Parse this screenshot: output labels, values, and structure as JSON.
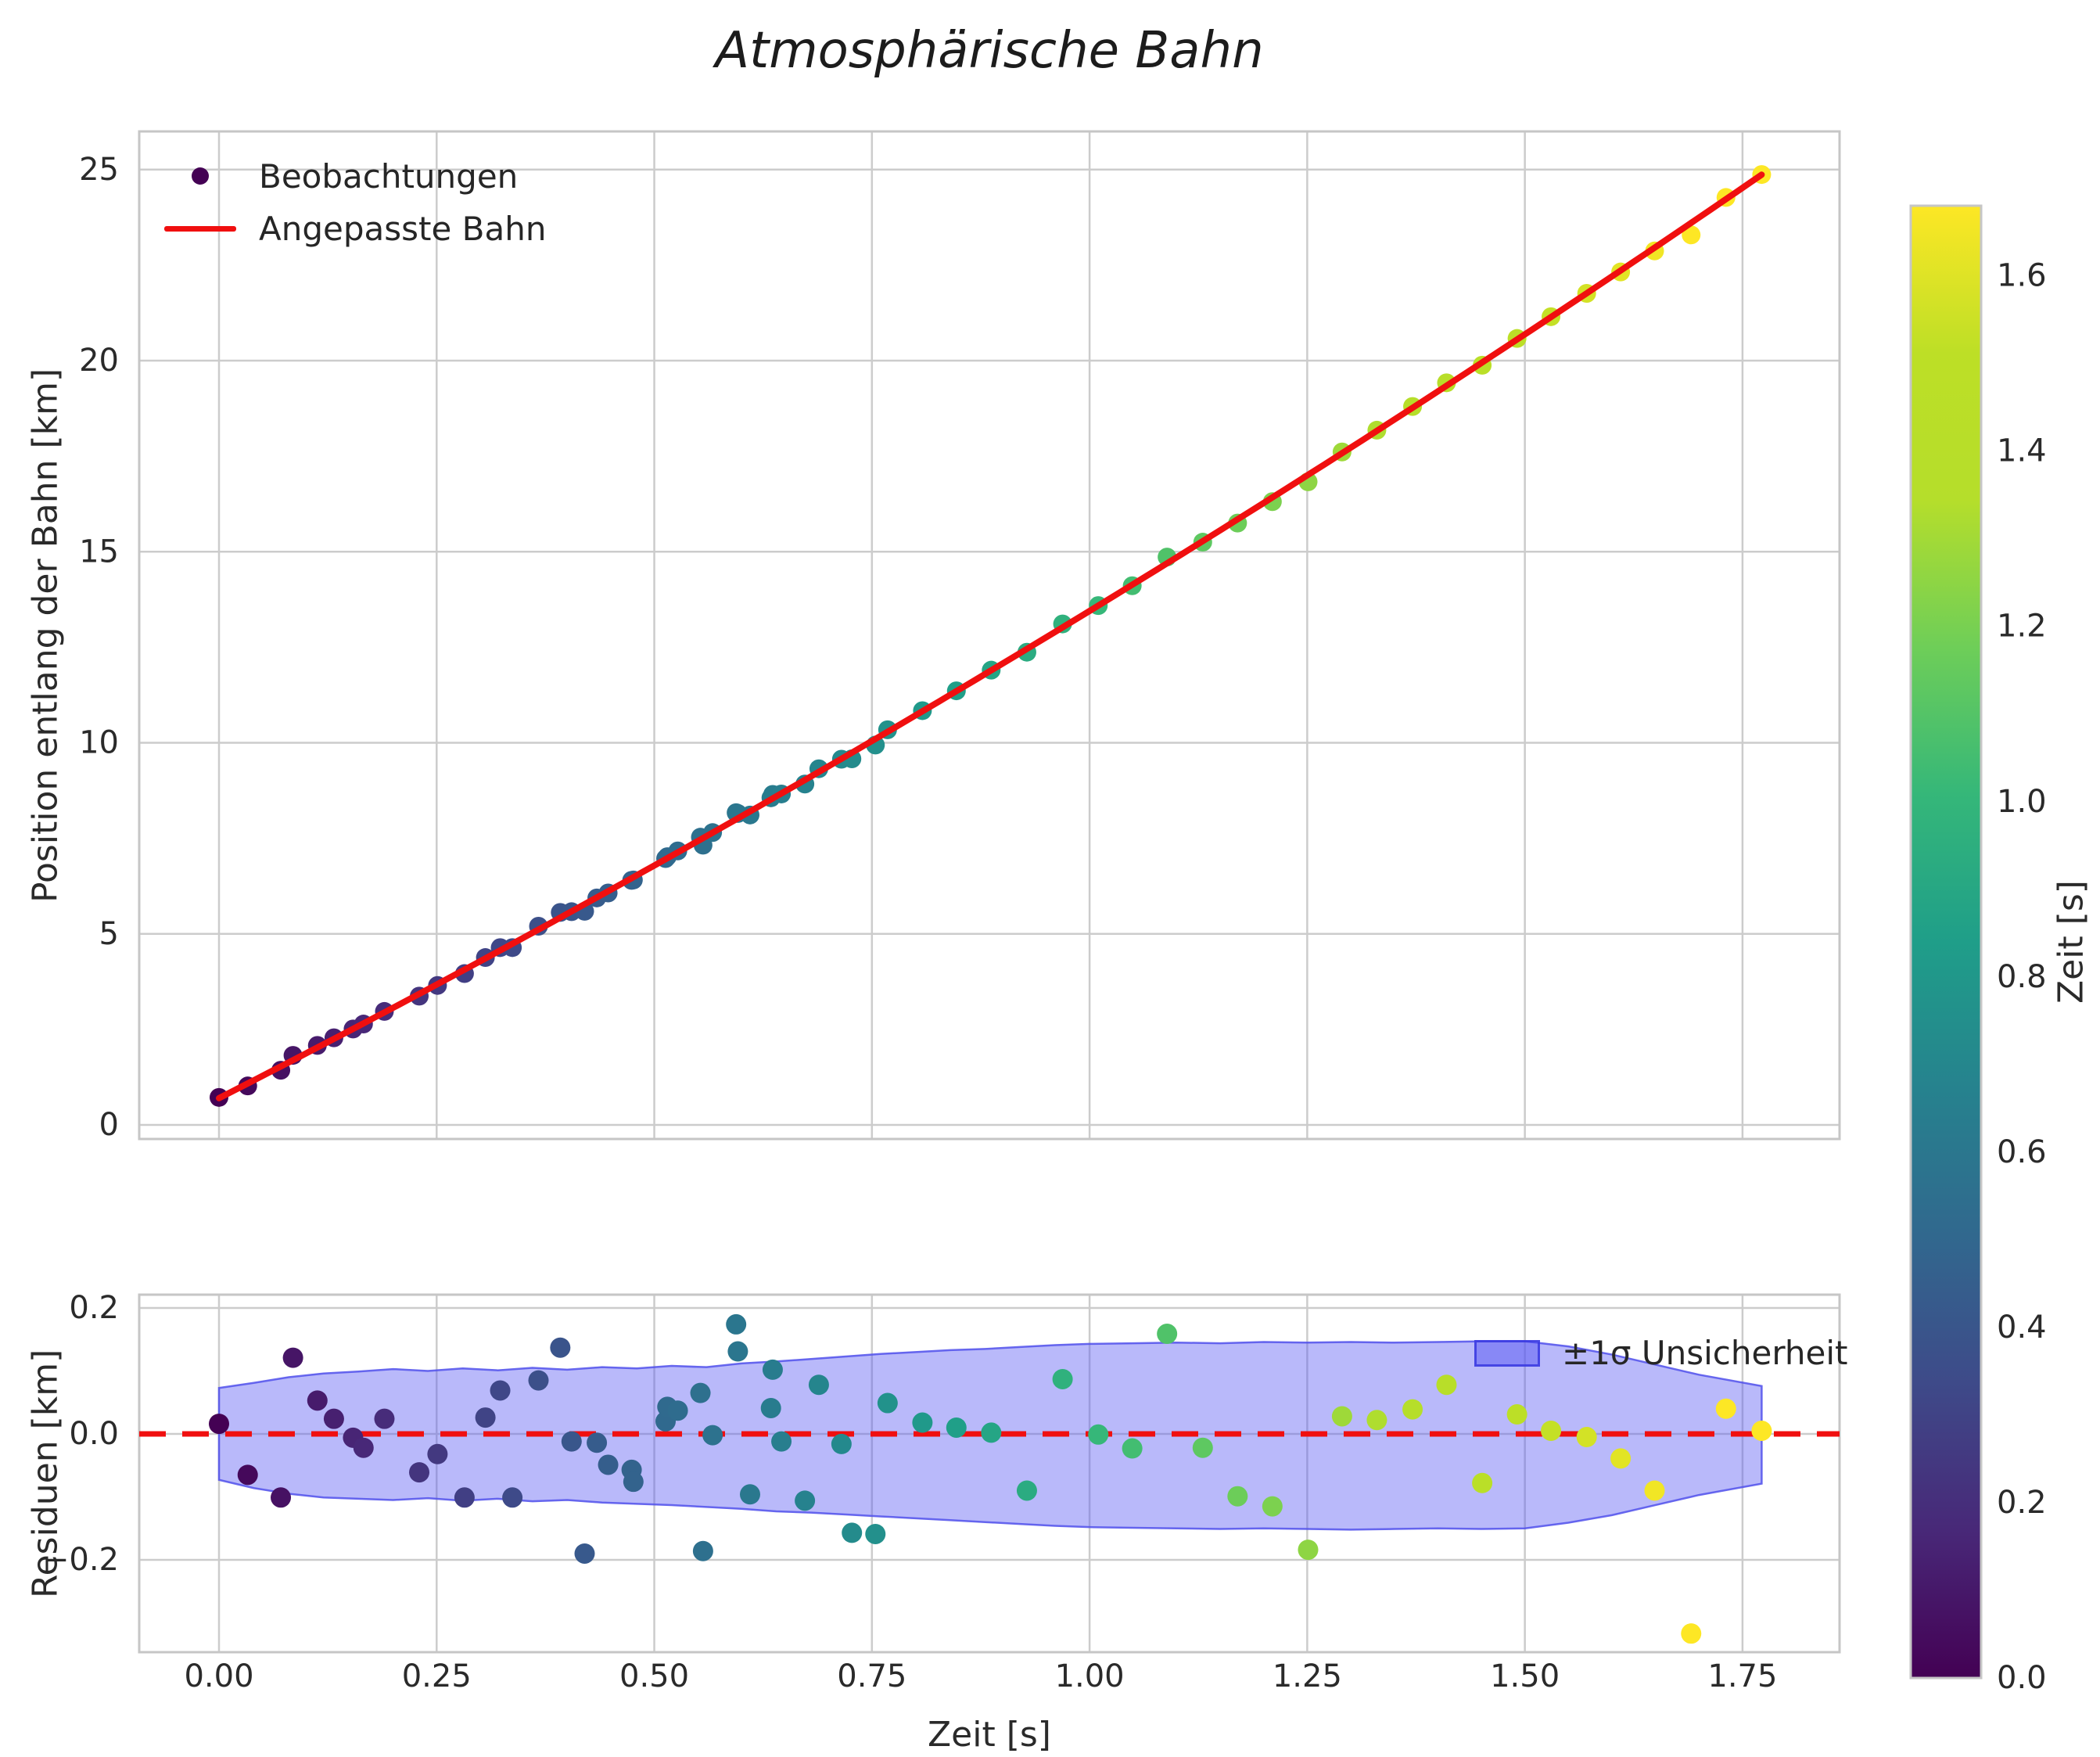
{
  "title": "Atmosphärische Bahn",
  "x_axis": {
    "label": "Zeit [s]",
    "tick_values": [
      0.0,
      0.25,
      0.5,
      0.75,
      1.0,
      1.25,
      1.5,
      1.75
    ],
    "tick_labels": [
      "0.00",
      "0.25",
      "0.50",
      "0.75",
      "1.00",
      "1.25",
      "1.50",
      "1.75"
    ],
    "range": [
      -0.092,
      1.862
    ]
  },
  "main_plot": {
    "ylabel": "Position entlang der Bahn [km]",
    "tick_values": [
      0,
      5,
      10,
      15,
      20,
      25
    ],
    "tick_labels": [
      "0",
      "5",
      "10",
      "15",
      "20",
      "25"
    ],
    "range": [
      -0.37,
      26.0
    ],
    "legend_observations": "Beobachtungen",
    "legend_fit": "Angepasste Bahn",
    "grid": true
  },
  "residual_plot": {
    "ylabel": "Residuen [km]",
    "tick_values": [
      0.2,
      0.0,
      -0.2
    ],
    "tick_labels": [
      "0.2",
      "0.0",
      "−0.2"
    ],
    "range": [
      -0.347,
      0.221
    ],
    "legend_band": "±1σ Unsicherheit",
    "zero_line_value": 0.0,
    "grid": true
  },
  "colorbar": {
    "label": "Zeit [s]",
    "tick_values": [
      0.0,
      0.2,
      0.4,
      0.6,
      0.8,
      1.0,
      1.2,
      1.4,
      1.6
    ],
    "tick_labels": [
      "0.0",
      "0.2",
      "0.4",
      "0.6",
      "0.8",
      "1.0",
      "1.2",
      "1.4",
      "1.6"
    ],
    "vmin": 0.0,
    "vmax": 1.68,
    "colormap": "viridis"
  },
  "colors": {
    "fit_line": "#f00f0f",
    "zero_line": "#f00f0f",
    "band_fill": "rgba(88,88,242,0.42)",
    "band_edge": "rgba(80,80,235,0.85)",
    "grid": "#cccccc",
    "spine": "#c6c6c6",
    "text": "#2a2a2a",
    "marker_first": "#440154",
    "viridis_stops": [
      [
        0,
        "#440154"
      ],
      [
        0.1,
        "#482878"
      ],
      [
        0.2,
        "#3e4a89"
      ],
      [
        0.3,
        "#31688e"
      ],
      [
        0.4,
        "#26828e"
      ],
      [
        0.5,
        "#1f9e89"
      ],
      [
        0.6,
        "#35b779"
      ],
      [
        0.7,
        "#6ece58"
      ],
      [
        0.8,
        "#b5de2b"
      ],
      [
        0.9,
        "#bddf26"
      ],
      [
        1,
        "#fde725"
      ]
    ]
  },
  "chart_data": {
    "type": "scatter",
    "title": "Atmosphärische Bahn",
    "xlabel": "Zeit [s]",
    "ylabel_main": "Position entlang der Bahn [km]",
    "ylabel_residual": "Residuen [km]",
    "color_encoding": "Zeit [s], viridis, vmin 0.0, vmax 1.68",
    "t": [
      0.0,
      0.033,
      0.071,
      0.085,
      0.113,
      0.132,
      0.154,
      0.166,
      0.19,
      0.23,
      0.251,
      0.282,
      0.306,
      0.323,
      0.337,
      0.367,
      0.392,
      0.405,
      0.42,
      0.434,
      0.447,
      0.474,
      0.476,
      0.513,
      0.515,
      0.527,
      0.553,
      0.556,
      0.567,
      0.594,
      0.596,
      0.61,
      0.634,
      0.636,
      0.646,
      0.673,
      0.689,
      0.715,
      0.727,
      0.754,
      0.768,
      0.808,
      0.847,
      0.887,
      0.928,
      0.969,
      1.01,
      1.049,
      1.089,
      1.13,
      1.17,
      1.21,
      1.251,
      1.29,
      1.33,
      1.371,
      1.41,
      1.451,
      1.491,
      1.53,
      1.571,
      1.61,
      1.649,
      1.691,
      1.731,
      1.772
    ],
    "position_km": [
      0.72,
      1.02,
      1.43,
      1.82,
      2.08,
      2.28,
      2.51,
      2.64,
      2.97,
      3.37,
      3.65,
      3.96,
      4.38,
      4.64,
      4.64,
      5.2,
      5.56,
      5.58,
      5.59,
      5.94,
      6.07,
      6.4,
      6.41,
      6.97,
      7.02,
      7.17,
      7.53,
      7.32,
      7.65,
      8.17,
      8.15,
      8.11,
      8.56,
      8.65,
      8.66,
      8.92,
      9.32,
      9.57,
      9.58,
      9.94,
      10.34,
      10.84,
      11.36,
      11.9,
      12.37,
      13.11,
      13.59,
      14.11,
      14.86,
      15.25,
      15.75,
      16.31,
      16.83,
      17.61,
      18.18,
      18.8,
      19.42,
      19.88,
      20.58,
      21.15,
      21.76,
      22.32,
      22.87,
      23.29,
      24.27,
      24.87
    ],
    "residual_km": [
      0.016,
      -0.065,
      -0.101,
      0.121,
      0.053,
      0.024,
      -0.006,
      -0.022,
      0.024,
      -0.061,
      -0.032,
      -0.101,
      0.026,
      0.069,
      -0.101,
      0.085,
      0.137,
      -0.012,
      -0.19,
      -0.014,
      -0.049,
      -0.057,
      -0.076,
      0.02,
      0.043,
      0.037,
      0.065,
      -0.186,
      -0.002,
      0.174,
      0.131,
      -0.096,
      0.041,
      0.102,
      -0.012,
      -0.106,
      0.078,
      -0.016,
      -0.157,
      -0.159,
      0.049,
      0.018,
      0.01,
      0.002,
      -0.09,
      0.087,
      -0.001,
      -0.023,
      0.159,
      -0.022,
      -0.099,
      -0.115,
      -0.184,
      0.028,
      0.022,
      0.039,
      0.078,
      -0.078,
      0.031,
      0.005,
      -0.005,
      -0.039,
      -0.09,
      -0.317,
      0.04,
      0.005
    ],
    "fit_model": "position = 0.7 + 11.6·t + 1.15·t²",
    "fit_coeffs": {
      "c0": 0.7,
      "c1": 11.6,
      "c2": 1.15
    },
    "fit_t_range": [
      0.0,
      1.772
    ],
    "uncertainty_band": {
      "t": [
        0.0,
        0.04,
        0.08,
        0.12,
        0.16,
        0.2,
        0.24,
        0.28,
        0.32,
        0.36,
        0.4,
        0.44,
        0.48,
        0.52,
        0.56,
        0.6,
        0.64,
        0.68,
        0.72,
        0.76,
        0.8,
        0.84,
        0.88,
        0.92,
        0.96,
        1.0,
        1.05,
        1.1,
        1.15,
        1.2,
        1.25,
        1.3,
        1.35,
        1.4,
        1.45,
        1.5,
        1.55,
        1.6,
        1.65,
        1.7,
        1.772
      ],
      "upper": [
        0.073,
        0.081,
        0.09,
        0.096,
        0.099,
        0.103,
        0.1,
        0.104,
        0.101,
        0.105,
        0.102,
        0.106,
        0.104,
        0.108,
        0.106,
        0.112,
        0.115,
        0.119,
        0.123,
        0.127,
        0.13,
        0.133,
        0.135,
        0.138,
        0.141,
        0.143,
        0.144,
        0.145,
        0.144,
        0.146,
        0.145,
        0.146,
        0.145,
        0.146,
        0.147,
        0.147,
        0.139,
        0.126,
        0.11,
        0.094,
        0.076
      ],
      "lower": [
        -0.073,
        -0.086,
        -0.095,
        -0.101,
        -0.103,
        -0.105,
        -0.102,
        -0.106,
        -0.103,
        -0.107,
        -0.105,
        -0.109,
        -0.111,
        -0.113,
        -0.116,
        -0.119,
        -0.123,
        -0.125,
        -0.128,
        -0.131,
        -0.134,
        -0.137,
        -0.14,
        -0.143,
        -0.146,
        -0.148,
        -0.149,
        -0.15,
        -0.151,
        -0.15,
        -0.151,
        -0.152,
        -0.151,
        -0.15,
        -0.151,
        -0.15,
        -0.141,
        -0.129,
        -0.113,
        -0.097,
        -0.079
      ]
    }
  }
}
